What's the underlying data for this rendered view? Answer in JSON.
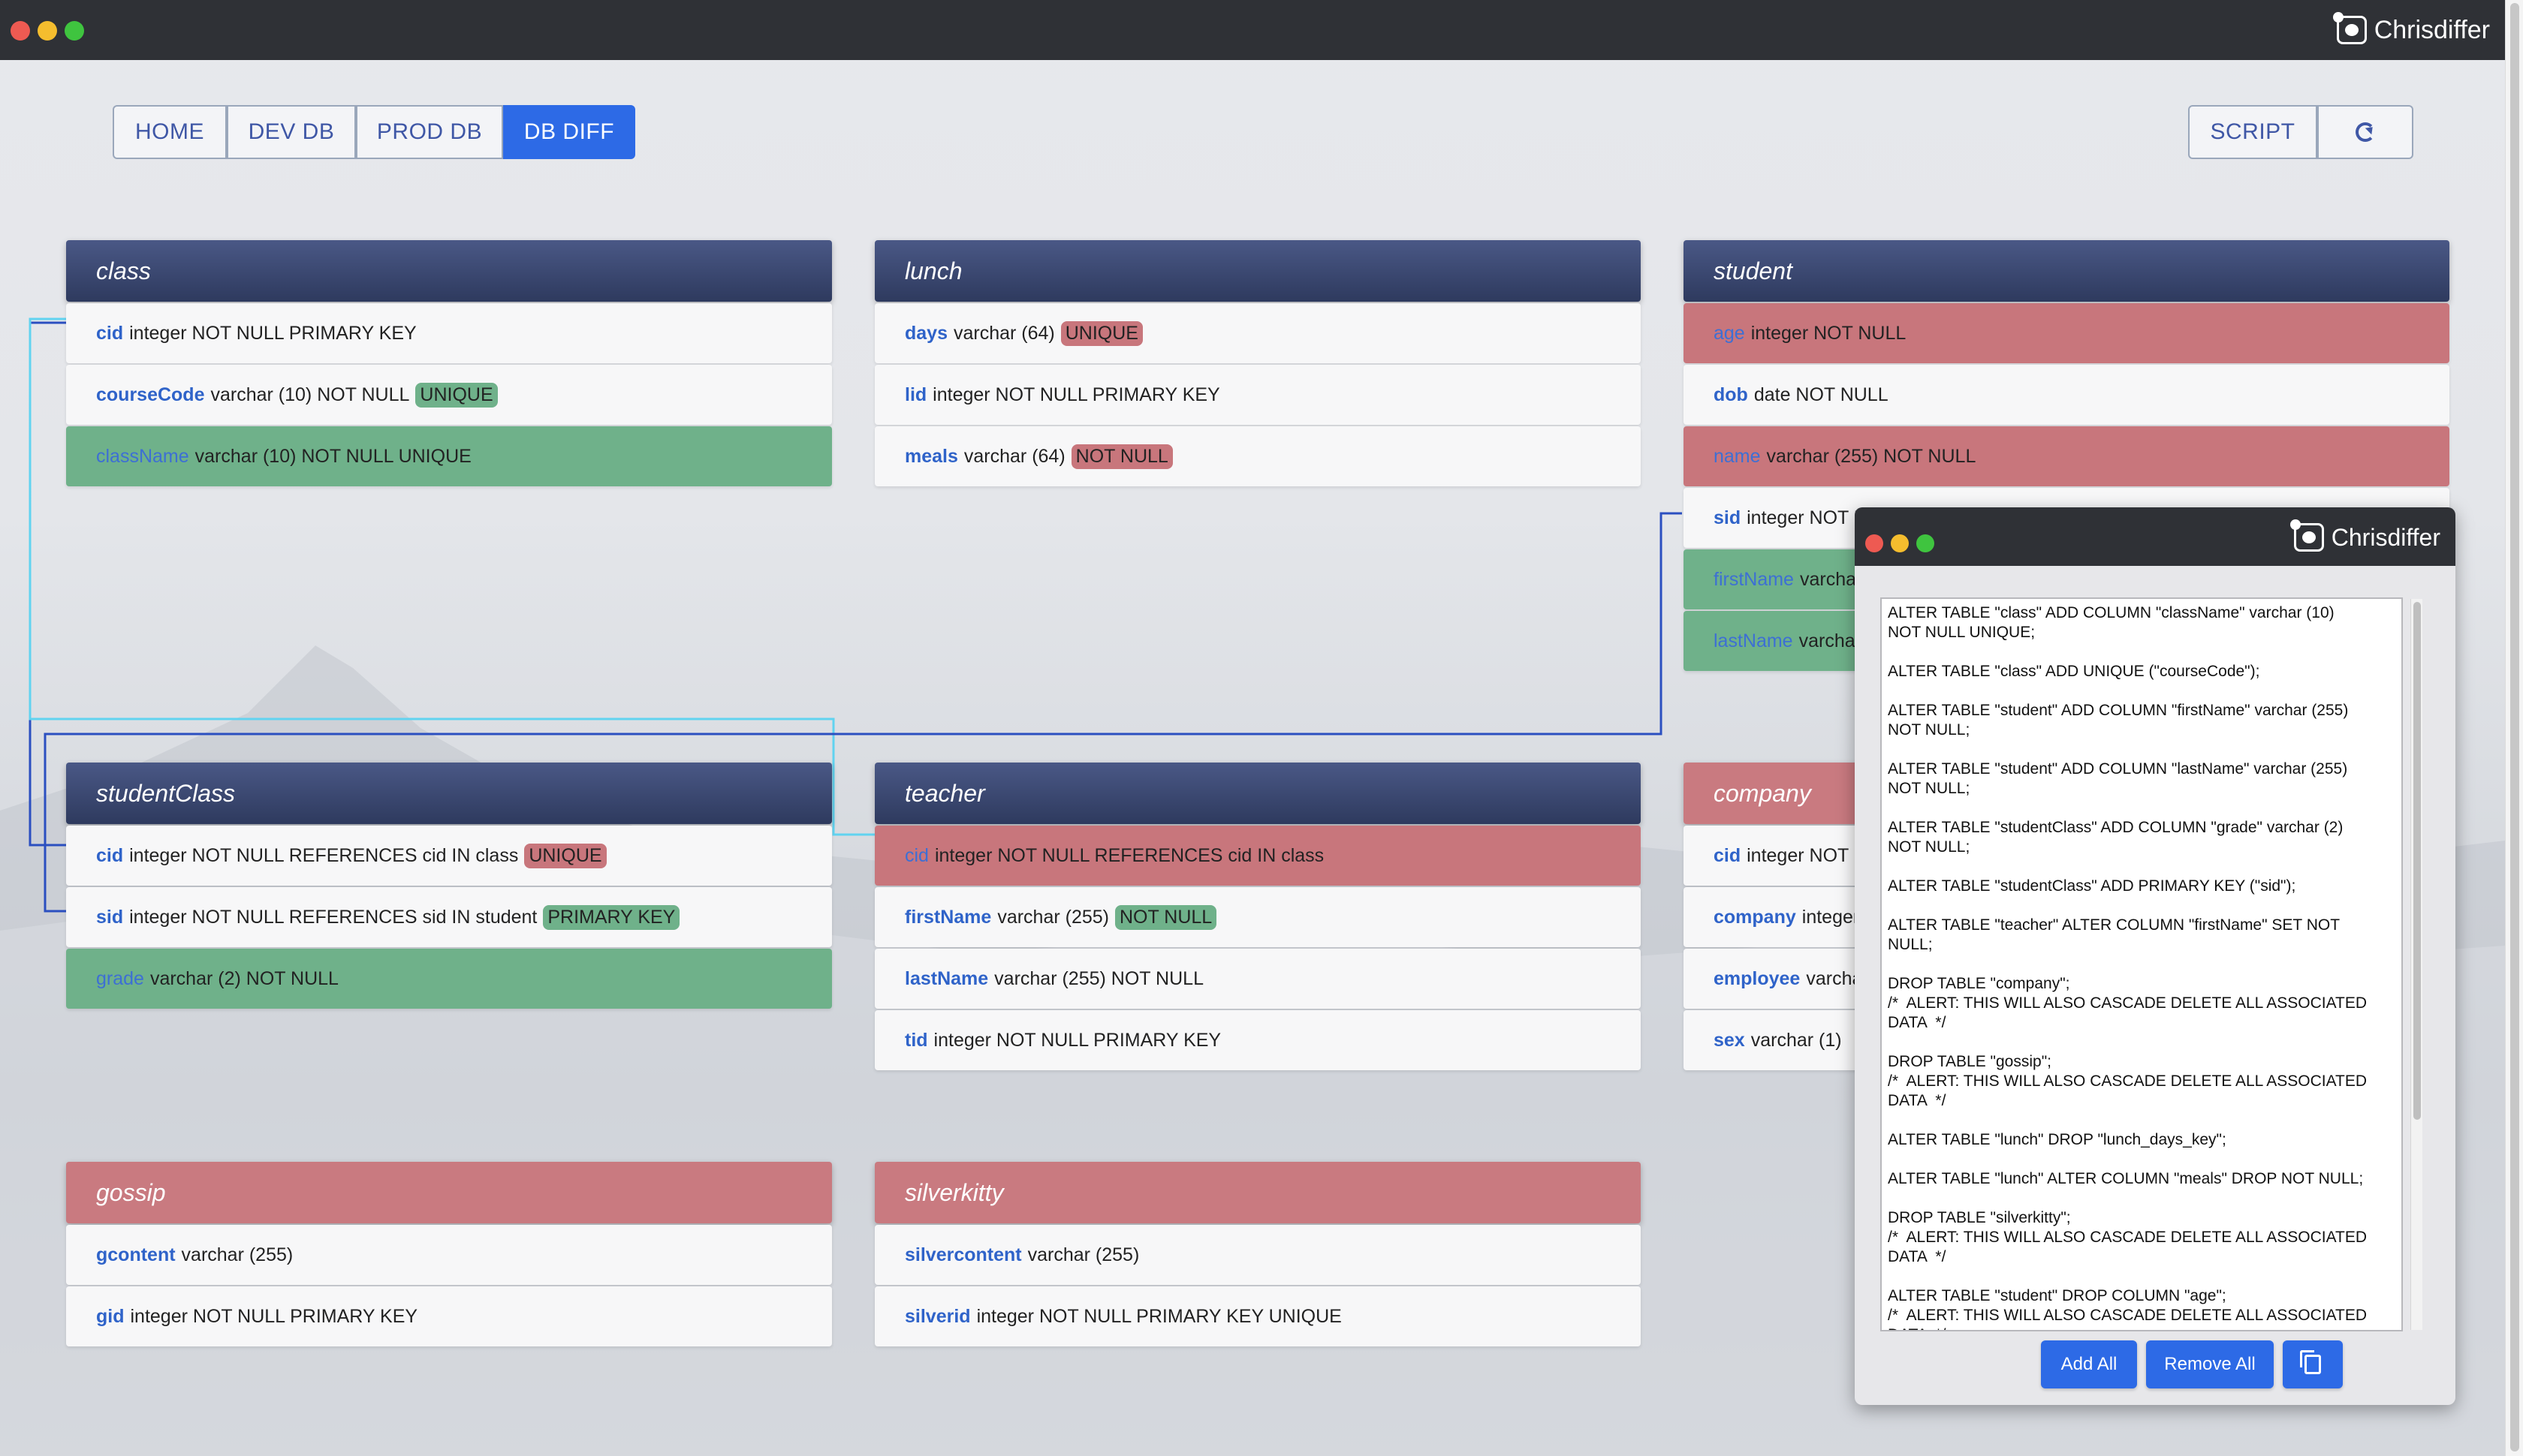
{
  "app": {
    "title": "Chrisdiffer"
  },
  "nav": {
    "home": "HOME",
    "dev_db": "DEV DB",
    "prod_db": "PROD DB",
    "db_diff": "DB DIFF",
    "script": "SCRIPT",
    "refresh_icon": "refresh-icon"
  },
  "colors": {
    "header": "#3a4670",
    "added": "#6fb18a",
    "removed": "#c8767c",
    "accent": "#2d6ae6"
  },
  "tables": {
    "class": {
      "name": "class",
      "rows": [
        {
          "field": "cid",
          "def": "integer NOT NULL  PRIMARY KEY"
        },
        {
          "field": "courseCode",
          "def": "varchar (10) NOT NULL",
          "tag": "UNIQUE"
        },
        {
          "field": "className",
          "def": "varchar (10) NOT NULL  UNIQUE"
        }
      ]
    },
    "lunch": {
      "name": "lunch",
      "rows": [
        {
          "field": "days",
          "def": "varchar (64)",
          "tag": "UNIQUE"
        },
        {
          "field": "lid",
          "def": "integer NOT NULL  PRIMARY KEY"
        },
        {
          "field": "meals",
          "def": "varchar (64)",
          "tag": "NOT NULL"
        }
      ]
    },
    "student": {
      "name": "student",
      "rows": [
        {
          "field": "age",
          "def": "integer NOT NULL"
        },
        {
          "field": "dob",
          "def": "date NOT NULL"
        },
        {
          "field": "name",
          "def": "varchar (255) NOT NULL"
        },
        {
          "field": "sid",
          "def": "integer NOT N"
        },
        {
          "field": "firstName",
          "def": "varcha"
        },
        {
          "field": "lastName",
          "def": "varcha"
        }
      ]
    },
    "studentClass": {
      "name": "studentClass",
      "rows": [
        {
          "field": "cid",
          "def": "integer NOT NULL  REFERENCES cid IN class",
          "tag": "UNIQUE"
        },
        {
          "field": "sid",
          "def": "integer NOT NULL  REFERENCES sid IN student",
          "tag": "PRIMARY KEY"
        },
        {
          "field": "grade",
          "def": "varchar (2) NOT NULL"
        }
      ]
    },
    "teacher": {
      "name": "teacher",
      "rows": [
        {
          "field": "cid",
          "def": "integer NOT NULL  REFERENCES cid IN class"
        },
        {
          "field": "firstName",
          "def": "varchar (255)",
          "tag": "NOT NULL"
        },
        {
          "field": "lastName",
          "def": "varchar (255) NOT NULL"
        },
        {
          "field": "tid",
          "def": "integer NOT NULL  PRIMARY KEY"
        }
      ]
    },
    "company": {
      "name": "company",
      "rows": [
        {
          "field": "cid",
          "def": "integer NOT N"
        },
        {
          "field": "company",
          "def": "integer"
        },
        {
          "field": "employee",
          "def": "varcha"
        },
        {
          "field": "sex",
          "def": "varchar (1)"
        }
      ]
    },
    "gossip": {
      "name": "gossip",
      "rows": [
        {
          "field": "gcontent",
          "def": "varchar (255)"
        },
        {
          "field": "gid",
          "def": "integer NOT NULL  PRIMARY KEY"
        }
      ]
    },
    "silverkitty": {
      "name": "silverkitty",
      "rows": [
        {
          "field": "silvercontent",
          "def": "varchar (255)"
        },
        {
          "field": "silverid",
          "def": "integer NOT NULL  PRIMARY KEY  UNIQUE"
        }
      ]
    }
  },
  "script_window": {
    "title": "Chrisdiffer",
    "lines": [
      "ALTER TABLE \"class\" ADD COLUMN \"className\" varchar (10)\nNOT NULL UNIQUE;",
      "ALTER TABLE \"class\" ADD UNIQUE (\"courseCode\");",
      "ALTER TABLE \"student\" ADD COLUMN \"firstName\" varchar (255)\nNOT NULL;",
      "ALTER TABLE \"student\" ADD COLUMN \"lastName\" varchar (255)\nNOT NULL;",
      "ALTER TABLE \"studentClass\" ADD COLUMN \"grade\" varchar (2)\nNOT NULL;",
      "ALTER TABLE \"studentClass\" ADD PRIMARY KEY (\"sid\");",
      "ALTER TABLE \"teacher\" ALTER COLUMN \"firstName\" SET NOT\nNULL;",
      "DROP TABLE \"company\";\n/*  ALERT: THIS WILL ALSO CASCADE DELETE ALL ASSOCIATED\nDATA  */",
      "DROP TABLE \"gossip\";\n/*  ALERT: THIS WILL ALSO CASCADE DELETE ALL ASSOCIATED\nDATA  */",
      "ALTER TABLE \"lunch\" DROP \"lunch_days_key\";",
      "ALTER TABLE \"lunch\" ALTER COLUMN \"meals\" DROP NOT NULL;",
      "DROP TABLE \"silverkitty\";\n/*  ALERT: THIS WILL ALSO CASCADE DELETE ALL ASSOCIATED\nDATA  */",
      "ALTER TABLE \"student\" DROP COLUMN \"age\";\n/*  ALERT: THIS WILL ALSO CASCADE DELETE ALL ASSOCIATED\nDATA  */"
    ],
    "add_all": "Add All",
    "remove_all": "Remove All",
    "copy_icon": "copy-icon"
  }
}
